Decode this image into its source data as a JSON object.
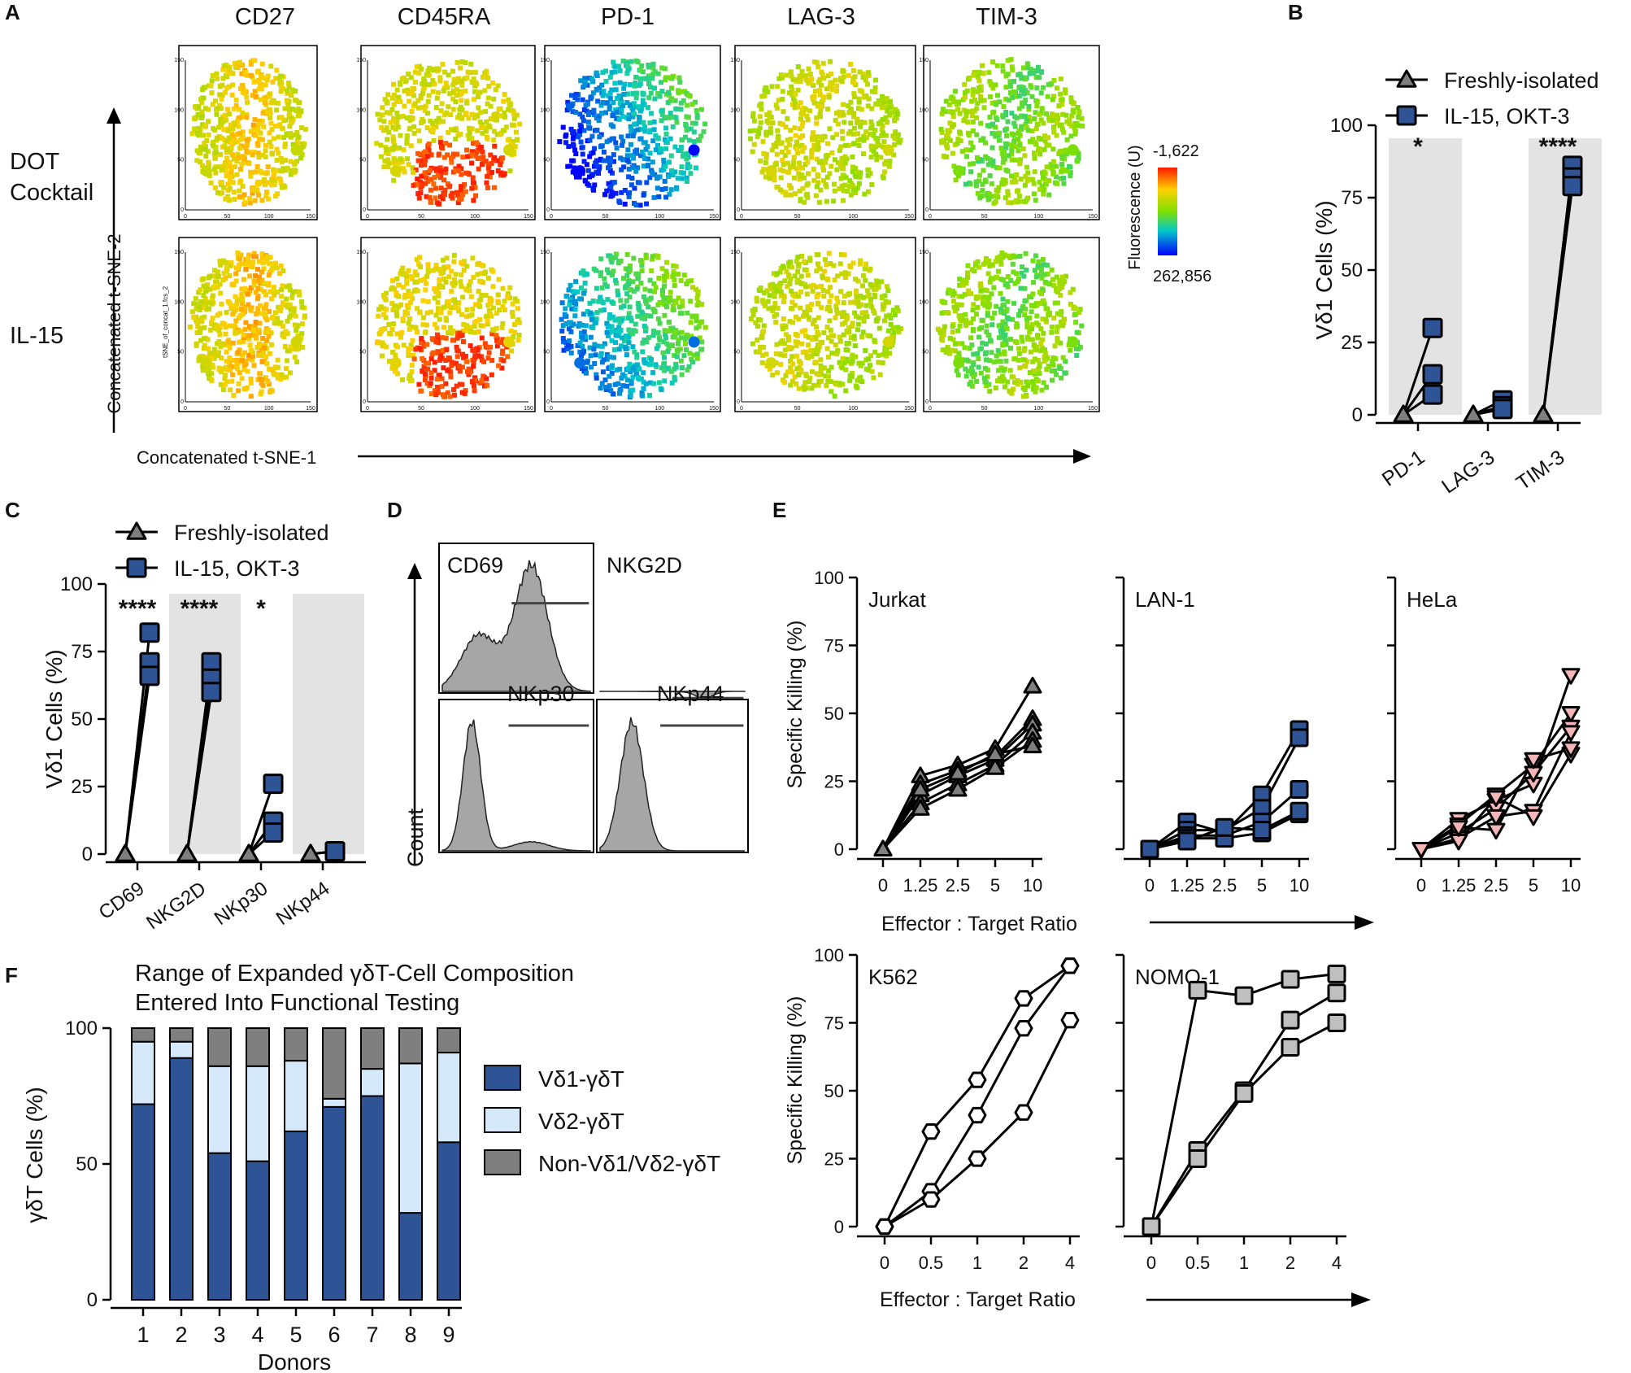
{
  "panel_letters": [
    "A",
    "B",
    "C",
    "D",
    "E",
    "F"
  ],
  "colors": {
    "blue_marker": "#2f5496",
    "gray_marker": "#7f7f7f",
    "pink_marker": "#f4b6b6",
    "light_gray_marker": "#bfbfbf",
    "shade": "#e3e3e3",
    "vd1": "#2f5496",
    "vd2": "#d6e9fa",
    "nonvd": "#7f7f7f"
  },
  "panelA": {
    "markers": [
      "CD27",
      "CD45RA",
      "PD-1",
      "LAG-3",
      "TIM-3"
    ],
    "rows": [
      "DOT Cocktail",
      "IL-15"
    ],
    "row_label_lines": [
      [
        "DOT",
        "Cocktail"
      ],
      [
        "IL-15"
      ]
    ],
    "y_axis_label": "Concatenated t-SNE-2",
    "x_axis_label": "Concatenated t-SNE-1",
    "small_y_label": "tSNE_of_concat_1.fcs_2",
    "x_ticks": [
      "0",
      "50",
      "100",
      "150"
    ],
    "y_ticks": [
      "0",
      "50",
      "100",
      "150"
    ],
    "colorbar": {
      "title": "Fluorescence (U)",
      "top_value": "-1,622",
      "bottom_value": "262,856"
    }
  },
  "chart_data": [
    {
      "panel": "B",
      "type": "scatter",
      "ylabel": "Vδ1 Cells (%)",
      "ylim": [
        0,
        100
      ],
      "y_ticks": [
        "0",
        "25",
        "50",
        "75",
        "100"
      ],
      "categories": [
        "PD-1",
        "LAG-3",
        "TIM-3"
      ],
      "legend": [
        "Freshly-isolated",
        "IL-15, OKT-3"
      ],
      "shaded_categories": [
        "PD-1",
        "TIM-3"
      ],
      "significance": [
        "*",
        "",
        "****"
      ],
      "series": [
        {
          "name": "Freshly-isolated",
          "values": [
            [
              0,
              0,
              0
            ],
            [
              0,
              0,
              0
            ],
            [
              0,
              0,
              0
            ]
          ]
        },
        {
          "name": "IL-15, OKT-3",
          "values": [
            [
              30,
              14,
              7
            ],
            [
              5,
              3,
              2
            ],
            [
              86,
              82,
              79
            ]
          ]
        }
      ]
    },
    {
      "panel": "C",
      "type": "scatter",
      "ylabel": "Vδ1 Cells (%)",
      "ylim": [
        0,
        100
      ],
      "y_ticks": [
        "0",
        "25",
        "50",
        "75",
        "100"
      ],
      "categories": [
        "CD69",
        "NKG2D",
        "NKp30",
        "NKp44"
      ],
      "legend": [
        "Freshly-isolated",
        "IL-15, OKT-3"
      ],
      "shaded_categories": [
        "NKG2D",
        "NKp44"
      ],
      "significance": [
        "****",
        "****",
        "*",
        ""
      ],
      "series": [
        {
          "name": "Freshly-isolated",
          "values": [
            [
              0,
              0,
              0
            ],
            [
              0,
              0,
              0
            ],
            [
              0,
              0,
              0
            ],
            [
              0,
              0,
              0
            ]
          ]
        },
        {
          "name": "IL-15, OKT-3",
          "values": [
            [
              82,
              71,
              66
            ],
            [
              71,
              65,
              60
            ],
            [
              26,
              12,
              8
            ],
            [
              1,
              1,
              1
            ]
          ]
        }
      ]
    },
    {
      "panel": "D",
      "type": "histogram",
      "ylabel": "Count",
      "histograms": [
        {
          "label": "CD69"
        },
        {
          "label": "NKG2D"
        },
        {
          "label": "NKp30"
        },
        {
          "label": "NKp44"
        }
      ]
    },
    {
      "panel": "E",
      "type": "line",
      "ylabel": "Specific Killing (%)",
      "xlabel": "Effector : Target Ratio",
      "x": [
        "0",
        "1.25",
        "2.5",
        "5",
        "10"
      ],
      "ylim": [
        0,
        100
      ],
      "y_ticks": [
        "0",
        "25",
        "50",
        "75",
        "100"
      ],
      "subplots": [
        {
          "title": "Jurkat",
          "marker": "triangle-up",
          "series": [
            [
              0,
              27,
              31,
              37,
              60
            ],
            [
              0,
              24,
              29,
              34,
              48
            ],
            [
              0,
              20,
              27,
              33,
              46
            ],
            [
              0,
              17,
              24,
              31,
              43
            ],
            [
              0,
              15,
              22,
              30,
              40
            ],
            [
              0,
              22,
              28,
              35,
              38
            ]
          ]
        },
        {
          "title": "LAN-1",
          "marker": "square",
          "series": [
            [
              0,
              10,
              6,
              20,
              44
            ],
            [
              0,
              7,
              7,
              15,
              41
            ],
            [
              0,
              5,
              5,
              10,
              22
            ],
            [
              0,
              4,
              4,
              6,
              13
            ],
            [
              0,
              3,
              8,
              7,
              14
            ]
          ]
        },
        {
          "title": "HeLa",
          "marker": "triangle-down",
          "series": [
            [
              0,
              11,
              18,
              24,
              64
            ],
            [
              0,
              9,
              20,
              31,
              50
            ],
            [
              0,
              6,
              15,
              28,
              45
            ],
            [
              0,
              4,
              12,
              14,
              43
            ],
            [
              0,
              3,
              19,
              12,
              35
            ],
            [
              0,
              8,
              7,
              33,
              37
            ]
          ]
        }
      ]
    },
    {
      "panel": "E",
      "type": "line",
      "ylabel": "Specific Killing (%)",
      "xlabel": "Effector : Target Ratio",
      "x": [
        "0",
        "0.5",
        "1",
        "2",
        "4"
      ],
      "ylim": [
        0,
        100
      ],
      "y_ticks": [
        "0",
        "25",
        "50",
        "75",
        "100"
      ],
      "subplots": [
        {
          "title": "K562",
          "marker": "hexagon",
          "series": [
            [
              0,
              35,
              54,
              84,
              96
            ],
            [
              0,
              13,
              41,
              73,
              96
            ],
            [
              0,
              10,
              25,
              42,
              76
            ]
          ]
        },
        {
          "title": "NOMO-1",
          "marker": "square",
          "series": [
            [
              0,
              87,
              85,
              91,
              93
            ],
            [
              0,
              28,
              50,
              76,
              86
            ],
            [
              0,
              25,
              49,
              66,
              75
            ]
          ]
        }
      ]
    },
    {
      "panel": "F",
      "type": "bar",
      "title": "Range of Expanded γδT-Cell Composition Entered Into Functional Testing",
      "title_lines": [
        "Range of Expanded γδT-Cell Composition",
        "Entered Into Functional Testing"
      ],
      "xlabel": "Donors",
      "ylabel": "γδT Cells (%)",
      "ylim": [
        0,
        100
      ],
      "y_ticks": [
        "0",
        "50",
        "100"
      ],
      "categories": [
        "1",
        "2",
        "3",
        "4",
        "5",
        "6",
        "7",
        "8",
        "9"
      ],
      "series": [
        {
          "name": "Vδ1-γδT",
          "values": [
            72,
            89,
            54,
            51,
            62,
            71,
            75,
            32,
            58
          ]
        },
        {
          "name": "Vδ2-γδT",
          "values": [
            23,
            6,
            32,
            35,
            26,
            3,
            10,
            55,
            33
          ]
        },
        {
          "name": "Non-Vδ1/Vδ2-γδT",
          "values": [
            5,
            5,
            14,
            14,
            12,
            26,
            15,
            13,
            9
          ]
        }
      ]
    }
  ]
}
